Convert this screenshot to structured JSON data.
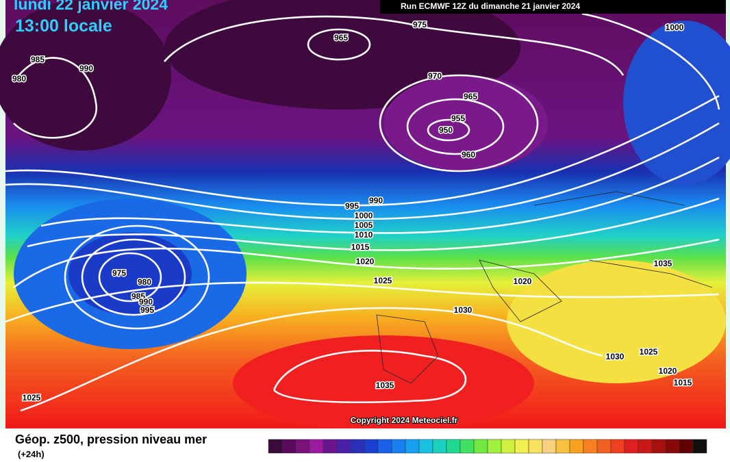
{
  "header": {
    "date": "lundi 22 janvier 2024",
    "time": "13:00 locale",
    "run": "Run ECMWF 12Z du dimanche 21 janvier 2024"
  },
  "map": {
    "copyright": "Copyright 2024 Meteociel.fr",
    "isobar_labels": [
      975,
      1000,
      965,
      985,
      990,
      980,
      970,
      965,
      955,
      950,
      960,
      995,
      990,
      1000,
      1005,
      1010,
      1015,
      1020,
      1025,
      975,
      980,
      985,
      990,
      995,
      1030,
      1020,
      1035,
      1025,
      1035,
      1030,
      1025,
      1020,
      1015
    ]
  },
  "footer": {
    "title": "Géop. z500, pression niveau mer",
    "lead": "(+24h)"
  }
}
